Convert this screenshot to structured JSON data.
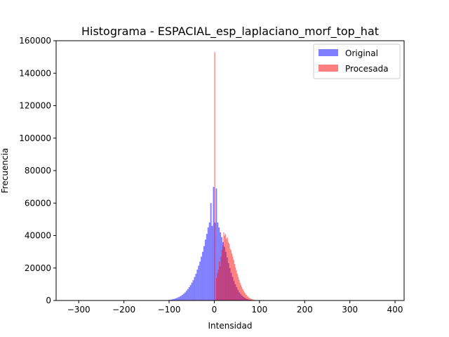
{
  "chart_data": {
    "type": "bar",
    "title": "Histograma - ESPACIAL_esp_laplaciano_morf_top_hat",
    "xlabel": "Intensidad",
    "ylabel": "Frecuencia",
    "xlim": [
      -350,
      420
    ],
    "ylim": [
      0,
      160000
    ],
    "x_ticks": [
      -300,
      -200,
      -100,
      0,
      100,
      200,
      300,
      400
    ],
    "y_ticks": [
      0,
      20000,
      40000,
      60000,
      80000,
      100000,
      120000,
      140000,
      160000
    ],
    "x_tick_labels": [
      "−300",
      "−200",
      "−100",
      "0",
      "100",
      "200",
      "300",
      "400"
    ],
    "y_tick_labels": [
      "0",
      "20000",
      "40000",
      "60000",
      "80000",
      "100000",
      "120000",
      "140000",
      "160000"
    ],
    "legend_position": "top-right",
    "grid": false,
    "series": [
      {
        "name": "Original",
        "color": "#0000ff",
        "opacity": 0.5,
        "bin_width": 3,
        "bins": [
          [
            -105,
            200
          ],
          [
            -102,
            300
          ],
          [
            -99,
            400
          ],
          [
            -96,
            600
          ],
          [
            -93,
            800
          ],
          [
            -90,
            1000
          ],
          [
            -87,
            1300
          ],
          [
            -84,
            1600
          ],
          [
            -81,
            2000
          ],
          [
            -78,
            2400
          ],
          [
            -75,
            2900
          ],
          [
            -72,
            3500
          ],
          [
            -69,
            4200
          ],
          [
            -66,
            5000
          ],
          [
            -63,
            6000
          ],
          [
            -60,
            7000
          ],
          [
            -57,
            8200
          ],
          [
            -54,
            9500
          ],
          [
            -51,
            11000
          ],
          [
            -48,
            12500
          ],
          [
            -45,
            14500
          ],
          [
            -42,
            16500
          ],
          [
            -39,
            19000
          ],
          [
            -36,
            21500
          ],
          [
            -33,
            24000
          ],
          [
            -30,
            27000
          ],
          [
            -27,
            30000
          ],
          [
            -24,
            33500
          ],
          [
            -21,
            37500
          ],
          [
            -18,
            41000
          ],
          [
            -15,
            45000
          ],
          [
            -12,
            48000
          ],
          [
            -9,
            60000
          ],
          [
            -6,
            46000
          ],
          [
            -3,
            70000
          ],
          [
            0,
            48000
          ],
          [
            3,
            69000
          ],
          [
            6,
            48000
          ],
          [
            9,
            45000
          ],
          [
            12,
            42000
          ],
          [
            15,
            39000
          ],
          [
            18,
            36000
          ],
          [
            21,
            33000
          ],
          [
            24,
            30000
          ],
          [
            27,
            26500
          ],
          [
            30,
            23000
          ],
          [
            33,
            20000
          ],
          [
            36,
            17000
          ],
          [
            39,
            14500
          ],
          [
            42,
            12000
          ],
          [
            45,
            10000
          ],
          [
            48,
            8200
          ],
          [
            51,
            6500
          ],
          [
            54,
            5000
          ],
          [
            57,
            4000
          ],
          [
            60,
            3000
          ],
          [
            63,
            2300
          ],
          [
            66,
            1700
          ],
          [
            69,
            1200
          ],
          [
            72,
            850
          ],
          [
            75,
            600
          ],
          [
            78,
            400
          ],
          [
            81,
            250
          ],
          [
            84,
            150
          ]
        ]
      },
      {
        "name": "Procesada",
        "color": "#ff0000",
        "opacity": 0.5,
        "bin_width": 2,
        "bins": [
          [
            0,
            153000
          ],
          [
            4,
            14000
          ],
          [
            6,
            17000
          ],
          [
            8,
            19000
          ],
          [
            10,
            24000
          ],
          [
            12,
            21000
          ],
          [
            14,
            27000
          ],
          [
            16,
            31000
          ],
          [
            18,
            34000
          ],
          [
            20,
            42000
          ],
          [
            22,
            40000
          ],
          [
            24,
            41000
          ],
          [
            26,
            38000
          ],
          [
            28,
            39000
          ],
          [
            30,
            36000
          ],
          [
            32,
            35000
          ],
          [
            34,
            32000
          ],
          [
            36,
            31000
          ],
          [
            38,
            29000
          ],
          [
            40,
            27000
          ],
          [
            42,
            25000
          ],
          [
            44,
            22500
          ],
          [
            46,
            20500
          ],
          [
            48,
            18500
          ],
          [
            50,
            16500
          ],
          [
            52,
            14500
          ],
          [
            54,
            12800
          ],
          [
            56,
            11000
          ],
          [
            58,
            9500
          ],
          [
            60,
            8200
          ],
          [
            62,
            7000
          ],
          [
            64,
            6000
          ],
          [
            66,
            5000
          ],
          [
            68,
            4200
          ],
          [
            70,
            3400
          ],
          [
            72,
            2800
          ],
          [
            74,
            2300
          ],
          [
            76,
            1800
          ],
          [
            78,
            1400
          ],
          [
            80,
            1100
          ],
          [
            82,
            850
          ],
          [
            84,
            650
          ],
          [
            86,
            500
          ],
          [
            88,
            380
          ],
          [
            90,
            280
          ],
          [
            92,
            210
          ],
          [
            94,
            160
          ],
          [
            96,
            120
          ],
          [
            98,
            90
          ],
          [
            100,
            70
          ],
          [
            102,
            50
          ],
          [
            104,
            40
          ],
          [
            106,
            30
          ],
          [
            108,
            20
          ],
          [
            110,
            15
          ],
          [
            112,
            10
          ]
        ]
      }
    ]
  }
}
